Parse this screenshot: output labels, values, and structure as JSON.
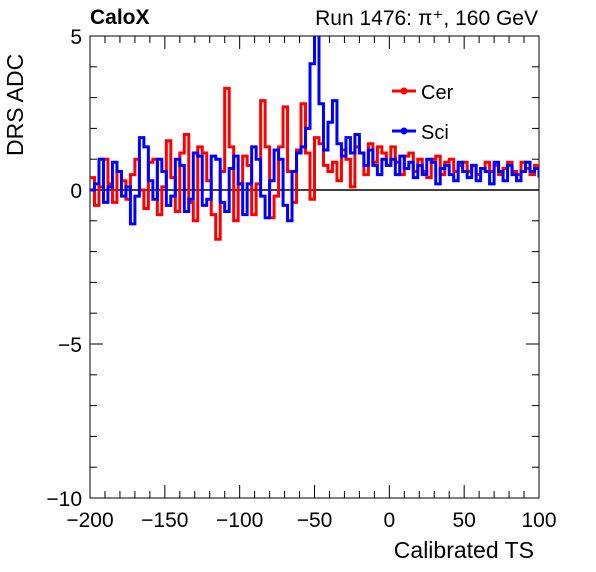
{
  "header": {
    "tag": "CaloX",
    "run_info": "Run 1476:   π⁺, 160 GeV"
  },
  "chart_data": {
    "type": "line",
    "xlabel": "Calibrated TS",
    "ylabel": "DRS ADC",
    "xlim": [
      -200,
      100
    ],
    "ylim": [
      -10,
      5
    ],
    "x_ticks": [
      -200,
      -150,
      -100,
      -50,
      0,
      50,
      100
    ],
    "x_tick_labels": [
      "−200",
      "−150",
      "−100",
      "−50",
      "0",
      "50",
      "100"
    ],
    "y_ticks": [
      -10,
      -5,
      0,
      5
    ],
    "y_tick_labels": [
      "−10",
      "−5",
      "0",
      "5"
    ],
    "legend_position": "top-right",
    "grid": false,
    "series": [
      {
        "name": "Cer",
        "color": "#ff0000",
        "x": [
          -200,
          -197,
          -194,
          -191,
          -188,
          -185,
          -182,
          -179,
          -176,
          -173,
          -170,
          -167,
          -164,
          -161,
          -158,
          -155,
          -152,
          -149,
          -146,
          -143,
          -140,
          -137,
          -134,
          -131,
          -128,
          -125,
          -122,
          -119,
          -116,
          -113,
          -110,
          -107,
          -104,
          -101,
          -98,
          -95,
          -92,
          -89,
          -86,
          -83,
          -80,
          -77,
          -74,
          -71,
          -68,
          -65,
          -62,
          -59,
          -56,
          -53,
          -50,
          -47,
          -44,
          -41,
          -38,
          -35,
          -32,
          -29,
          -26,
          -23,
          -20,
          -17,
          -14,
          -11,
          -8,
          -5,
          -2,
          1,
          4,
          7,
          10,
          13,
          16,
          19,
          22,
          25,
          28,
          31,
          34,
          37,
          40,
          43,
          46,
          49,
          52,
          55,
          58,
          61,
          64,
          67,
          70,
          73,
          76,
          79,
          82,
          85,
          88,
          91,
          94,
          97,
          100
        ],
        "y": [
          0.4,
          -0.5,
          0.1,
          1.0,
          0.2,
          -0.4,
          0.6,
          0.3,
          -0.3,
          0.5,
          1.0,
          0.0,
          -0.6,
          0.9,
          1.0,
          -0.8,
          0.1,
          1.6,
          0.4,
          -0.7,
          1.2,
          1.8,
          -0.4,
          -1.0,
          1.4,
          1.2,
          0.3,
          -0.8,
          -1.6,
          0.6,
          3.3,
          1.4,
          -1.0,
          0.2,
          1.1,
          0.8,
          -0.8,
          0.2,
          2.9,
          1.4,
          -0.9,
          -0.2,
          1.4,
          2.7,
          0.6,
          -0.4,
          1.3,
          2.8,
          1.2,
          -0.3,
          1.7,
          1.5,
          0.8,
          0.6,
          0.9,
          0.3,
          1.3,
          1.0,
          0.1,
          1.4,
          1.2,
          0.5,
          1.5,
          0.9,
          1.4,
          1.2,
          0.8,
          1.4,
          0.9,
          0.5,
          1.1,
          1.2,
          0.6,
          1.0,
          0.6,
          0.4,
          1.0,
          1.1,
          0.5,
          0.9,
          1.0,
          0.6,
          0.8,
          0.9,
          0.6,
          0.8,
          0.5,
          0.7,
          0.9,
          0.6,
          0.8,
          0.5,
          0.7,
          0.9,
          0.6,
          0.5,
          0.9,
          0.7,
          0.5,
          0.8,
          0.7
        ]
      },
      {
        "name": "Sci",
        "color": "#0000ff",
        "x": [
          -200,
          -197,
          -194,
          -191,
          -188,
          -185,
          -182,
          -179,
          -176,
          -173,
          -170,
          -167,
          -164,
          -161,
          -158,
          -155,
          -152,
          -149,
          -146,
          -143,
          -140,
          -137,
          -134,
          -131,
          -128,
          -125,
          -122,
          -119,
          -116,
          -113,
          -110,
          -107,
          -104,
          -101,
          -98,
          -95,
          -92,
          -89,
          -86,
          -83,
          -80,
          -77,
          -74,
          -71,
          -68,
          -65,
          -62,
          -59,
          -56,
          -53,
          -50,
          -47,
          -44,
          -41,
          -38,
          -35,
          -32,
          -29,
          -26,
          -23,
          -20,
          -17,
          -14,
          -11,
          -8,
          -5,
          -2,
          1,
          4,
          7,
          10,
          13,
          16,
          19,
          22,
          25,
          28,
          31,
          34,
          37,
          40,
          43,
          46,
          49,
          52,
          55,
          58,
          61,
          64,
          67,
          70,
          73,
          76,
          79,
          82,
          85,
          88,
          91,
          94,
          97,
          100
        ],
        "y": [
          0.0,
          0.2,
          1.0,
          -0.4,
          0.1,
          0.9,
          0.6,
          -0.2,
          0.1,
          -1.1,
          -0.2,
          1.7,
          1.4,
          0.3,
          -0.3,
          1.0,
          0.6,
          -0.5,
          -0.2,
          1.0,
          0.8,
          -0.7,
          -0.3,
          1.2,
          1.1,
          -0.5,
          -0.3,
          1.1,
          1.0,
          -0.4,
          -0.7,
          0.7,
          1.1,
          0.2,
          -0.8,
          0.2,
          1.4,
          1.0,
          -0.2,
          -0.9,
          0.3,
          1.3,
          1.0,
          -0.5,
          -1.0,
          0.6,
          1.2,
          1.4,
          2.0,
          4.1,
          5.1,
          2.8,
          1.3,
          2.2,
          2.9,
          1.5,
          1.1,
          1.7,
          1.2,
          1.8,
          1.2,
          0.8,
          1.3,
          0.8,
          0.5,
          1.0,
          0.8,
          1.0,
          0.5,
          1.1,
          0.7,
          0.9,
          0.4,
          0.8,
          0.5,
          1.0,
          0.9,
          0.2,
          0.7,
          0.8,
          0.5,
          0.3,
          0.9,
          0.6,
          0.4,
          0.8,
          0.3,
          0.7,
          0.6,
          0.2,
          0.9,
          0.6,
          0.3,
          0.8,
          0.5,
          0.3,
          0.6,
          0.9,
          0.6,
          0.7,
          0.4
        ]
      }
    ]
  }
}
